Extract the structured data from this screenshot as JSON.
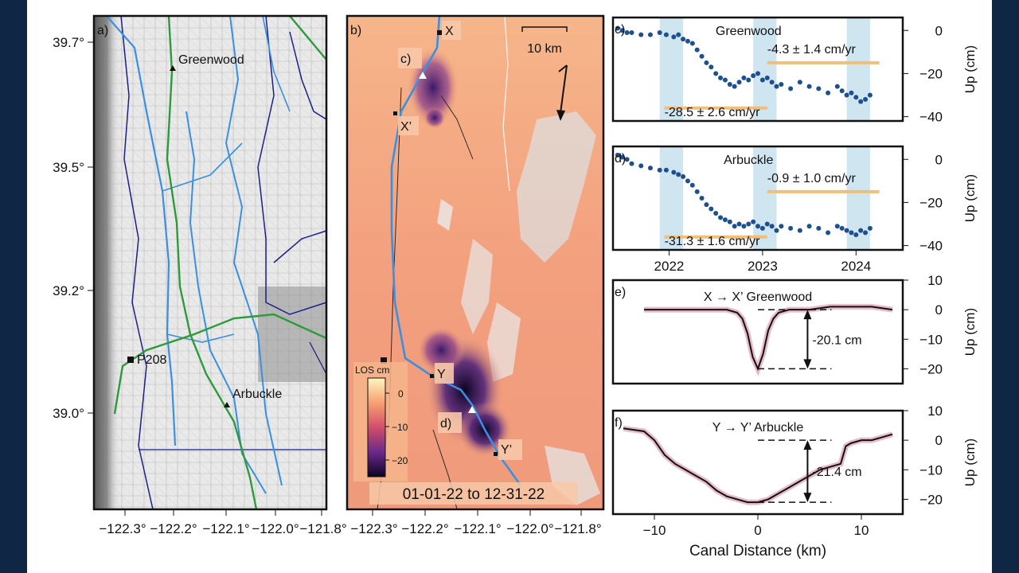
{
  "colors": {
    "slide_bg": "#0f2744",
    "canal": "#3b8fe0",
    "road": "#2e9a3c",
    "boundary": "#1c1f8a",
    "band": "#cfe5f0",
    "rate": "#f0c07a",
    "dot": "#1d4f91"
  },
  "map_a": {
    "label": "a)",
    "lat_ticks": [
      "39.7°",
      "39.5°",
      "39.2°",
      "39.0°"
    ],
    "lon_ticks": [
      "−122.3°",
      "−122.2°",
      "−122.1°",
      "−122.0°",
      "−121.8°"
    ],
    "sites": {
      "greenwood": "Greenwood",
      "p208": "P208",
      "arbuckle": "Arbuckle"
    }
  },
  "map_b": {
    "label": "b)",
    "lon_ticks": [
      "−122.3°",
      "−122.2°",
      "−122.1°",
      "−122.0°",
      "−121.8°"
    ],
    "scale": "10 km",
    "markers": {
      "x": "X",
      "x_prime": "X’",
      "y": "Y",
      "y_prime": "Y’",
      "c": "c)",
      "d": "d)"
    },
    "colorbar": {
      "title": "LOS cm",
      "ticks": [
        "0",
        "−10",
        "−20"
      ]
    },
    "date_range": "01-01-22 to 12-31-22"
  },
  "chart_data": [
    {
      "type": "scatter",
      "label": "c)",
      "title": "Greenwood",
      "ylabel": "Up (cm)",
      "ylim": [
        -42,
        6
      ],
      "xlim": [
        2021.4,
        2024.5
      ],
      "yticks": [
        "0",
        "−20",
        "−40"
      ],
      "annotations": [
        "-4.3 ± 1.4 cm/yr",
        "-28.5 ± 2.6 cm/yr"
      ],
      "bands": [
        [
          2021.9,
          2022.15
        ],
        [
          2022.9,
          2023.15
        ],
        [
          2023.9,
          2024.15
        ]
      ],
      "x": [
        2021.45,
        2021.5,
        2021.55,
        2021.6,
        2021.7,
        2021.8,
        2021.9,
        2021.97,
        2022.05,
        2022.1,
        2022.15,
        2022.2,
        2022.25,
        2022.3,
        2022.35,
        2022.4,
        2022.45,
        2022.5,
        2022.55,
        2022.6,
        2022.65,
        2022.7,
        2022.75,
        2022.8,
        2022.85,
        2022.9,
        2022.95,
        2023.0,
        2023.05,
        2023.1,
        2023.15,
        2023.2,
        2023.3,
        2023.4,
        2023.5,
        2023.6,
        2023.7,
        2023.8,
        2023.85,
        2023.9,
        2023.95,
        2024.0,
        2024.05,
        2024.1,
        2024.15
      ],
      "y": [
        1,
        0,
        -1,
        -1,
        -2,
        -2,
        -1,
        -2,
        -3,
        -2,
        -4,
        -5,
        -6,
        -9,
        -12,
        -15,
        -17,
        -20,
        -22,
        -23,
        -25,
        -26,
        -24,
        -22,
        -23,
        -21,
        -20,
        -23,
        -22,
        -24,
        -26,
        -25,
        -27,
        -24,
        -26,
        -27,
        -29,
        -26,
        -28,
        -30,
        -29,
        -31,
        -33,
        -32,
        -30
      ]
    },
    {
      "type": "scatter",
      "label": "d)",
      "title": "Arbuckle",
      "ylabel": "Up (cm)",
      "ylim": [
        -42,
        6
      ],
      "xlim": [
        2021.4,
        2024.5
      ],
      "yticks": [
        "0",
        "−20",
        "−40"
      ],
      "xticks": [
        "2022",
        "2023",
        "2024"
      ],
      "annotations": [
        "-0.9 ± 1.0 cm/yr",
        "-31.3 ± 1.6 cm/yr"
      ],
      "bands": [
        [
          2021.9,
          2022.15
        ],
        [
          2022.9,
          2023.15
        ],
        [
          2023.9,
          2024.15
        ]
      ],
      "x": [
        2021.45,
        2021.5,
        2021.55,
        2021.6,
        2021.7,
        2021.8,
        2021.9,
        2021.97,
        2022.05,
        2022.1,
        2022.15,
        2022.2,
        2022.25,
        2022.3,
        2022.35,
        2022.4,
        2022.45,
        2022.5,
        2022.55,
        2022.6,
        2022.65,
        2022.7,
        2022.75,
        2022.8,
        2022.85,
        2022.9,
        2022.95,
        2023.0,
        2023.05,
        2023.1,
        2023.15,
        2023.2,
        2023.3,
        2023.4,
        2023.5,
        2023.6,
        2023.7,
        2023.8,
        2023.85,
        2023.9,
        2023.95,
        2024.0,
        2024.05,
        2024.1,
        2024.15
      ],
      "y": [
        2,
        1,
        0,
        -2,
        -3,
        -4,
        -5,
        -5,
        -6,
        -7,
        -8,
        -10,
        -12,
        -15,
        -18,
        -21,
        -23,
        -25,
        -27,
        -28,
        -29,
        -31,
        -30,
        -31,
        -30,
        -29,
        -31,
        -32,
        -30,
        -31,
        -33,
        -31,
        -32,
        -33,
        -31,
        -32,
        -34,
        -31,
        -32,
        -33,
        -34,
        -35,
        -33,
        -34,
        -32
      ]
    },
    {
      "type": "line",
      "label": "e)",
      "title": "X → X’ Greenwood",
      "ylabel": "Up (cm)",
      "ylim": [
        -25,
        10
      ],
      "xlim": [
        -14,
        14
      ],
      "yticks": [
        "10",
        "0",
        "−10",
        "−20"
      ],
      "annotation": "-20.1 cm",
      "x": [
        -11,
        -9,
        -7,
        -5,
        -3,
        -2,
        -1.5,
        -1,
        -0.5,
        0,
        0.5,
        1,
        1.5,
        2,
        3,
        5,
        7,
        9,
        11,
        13
      ],
      "y": [
        0,
        0,
        0,
        0,
        0,
        -1,
        -3,
        -8,
        -16,
        -20,
        -15,
        -7,
        -3,
        -1,
        0,
        0,
        1,
        1,
        1,
        0
      ]
    },
    {
      "type": "line",
      "label": "f)",
      "title": "Y → Y’ Arbuckle",
      "ylabel": "Up (cm)",
      "ylim": [
        -25,
        10
      ],
      "xlim": [
        -14,
        14
      ],
      "yticks": [
        "10",
        "0",
        "−10",
        "−20"
      ],
      "xticks": [
        "−10",
        "0",
        "10"
      ],
      "xlabel": "Canal Distance (km)",
      "annotation": "-21.4 cm",
      "x": [
        -13,
        -11,
        -10,
        -9,
        -8,
        -7,
        -6,
        -5,
        -4,
        -3,
        -2,
        -1,
        0,
        1,
        2,
        3,
        4,
        5,
        6,
        7,
        8,
        8.5,
        9,
        10,
        11,
        12,
        13
      ],
      "y": [
        4,
        3,
        0,
        -5,
        -8,
        -10,
        -12,
        -14,
        -17,
        -19,
        -20,
        -21,
        -21,
        -20,
        -18,
        -16,
        -14,
        -12,
        -10,
        -9,
        -8,
        -2,
        -1,
        0,
        0,
        1,
        2
      ]
    }
  ]
}
